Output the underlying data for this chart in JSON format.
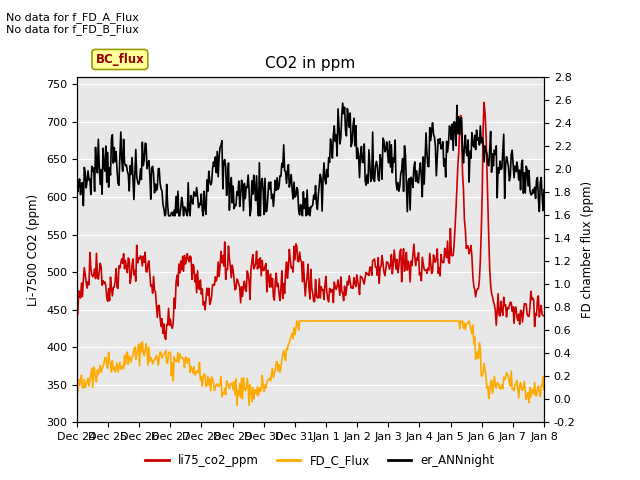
{
  "title": "CO2 in ppm",
  "ylabel_left": "Li-7500 CO2 (ppm)",
  "ylabel_right": "FD chamber flux (ppm)",
  "ylim_left": [
    300,
    760
  ],
  "ylim_right": [
    -0.2,
    2.8
  ],
  "yticks_left": [
    300,
    350,
    400,
    450,
    500,
    550,
    600,
    650,
    700,
    750
  ],
  "yticks_right": [
    -0.2,
    0.0,
    0.2,
    0.4,
    0.6,
    0.8,
    1.0,
    1.2,
    1.4,
    1.6,
    1.8,
    2.0,
    2.2,
    2.4,
    2.6,
    2.8
  ],
  "xticklabels": [
    "Dec 24",
    "Dec 25",
    "Dec 26",
    "Dec 27",
    "Dec 28",
    "Dec 29",
    "Dec 30",
    "Dec 31",
    "Jan 1",
    "Jan 2",
    "Jan 3",
    "Jan 4",
    "Jan 5",
    "Jan 6",
    "Jan 7",
    "Jan 8"
  ],
  "annotations": [
    "No data for f_FD_A_Flux",
    "No data for f_FD_B_Flux"
  ],
  "bc_flux_label": "BC_flux",
  "legend_items": [
    {
      "label": "li75_co2_ppm",
      "color": "#cc0000",
      "lw": 1.2
    },
    {
      "label": "FD_C_Flux",
      "color": "#ffaa00",
      "lw": 1.2
    },
    {
      "label": "er_ANNnight",
      "color": "#000000",
      "lw": 1.2
    }
  ],
  "plot_bg_color": "#e8e8e8",
  "n_points": 500,
  "figsize": [
    6.4,
    4.8
  ],
  "dpi": 100
}
